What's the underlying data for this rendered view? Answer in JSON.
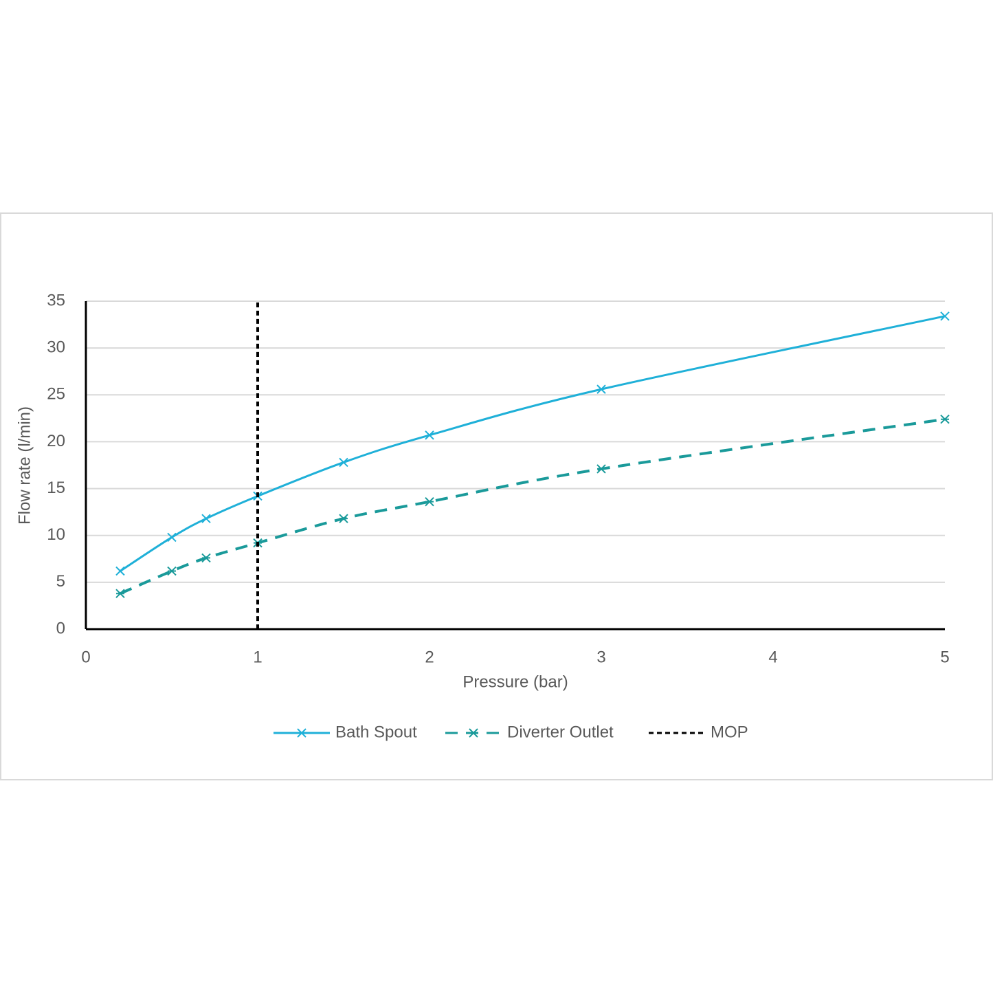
{
  "chart_data": {
    "type": "line",
    "x_label": "Pressure (bar)",
    "y_label": "Flow rate (l/min)",
    "x": [
      0.2,
      0.5,
      0.7,
      1,
      1.5,
      2,
      3,
      5
    ],
    "series": [
      {
        "name": "Bath Spout",
        "color": "#1fb0d8",
        "dash": "solid",
        "values": [
          6.2,
          9.8,
          11.8,
          14.2,
          17.8,
          20.7,
          25.6,
          33.4
        ]
      },
      {
        "name": "Diverter Outlet",
        "color": "#1a9a9a",
        "dash": "dashed",
        "values": [
          3.8,
          6.2,
          7.6,
          9.2,
          11.8,
          13.6,
          17.1,
          22.4
        ]
      },
      {
        "name": "MOP",
        "color": "#000000",
        "dash": "dotted",
        "x": [
          1,
          1
        ],
        "values": [
          0,
          35
        ]
      }
    ],
    "xlim": [
      0,
      5
    ],
    "xticks": [
      0,
      1,
      2,
      3,
      4,
      5
    ],
    "ylim": [
      0,
      35
    ],
    "yticks": [
      0,
      5,
      10,
      15,
      20,
      25,
      30,
      35
    ],
    "grid": true,
    "legend": "bottom"
  }
}
